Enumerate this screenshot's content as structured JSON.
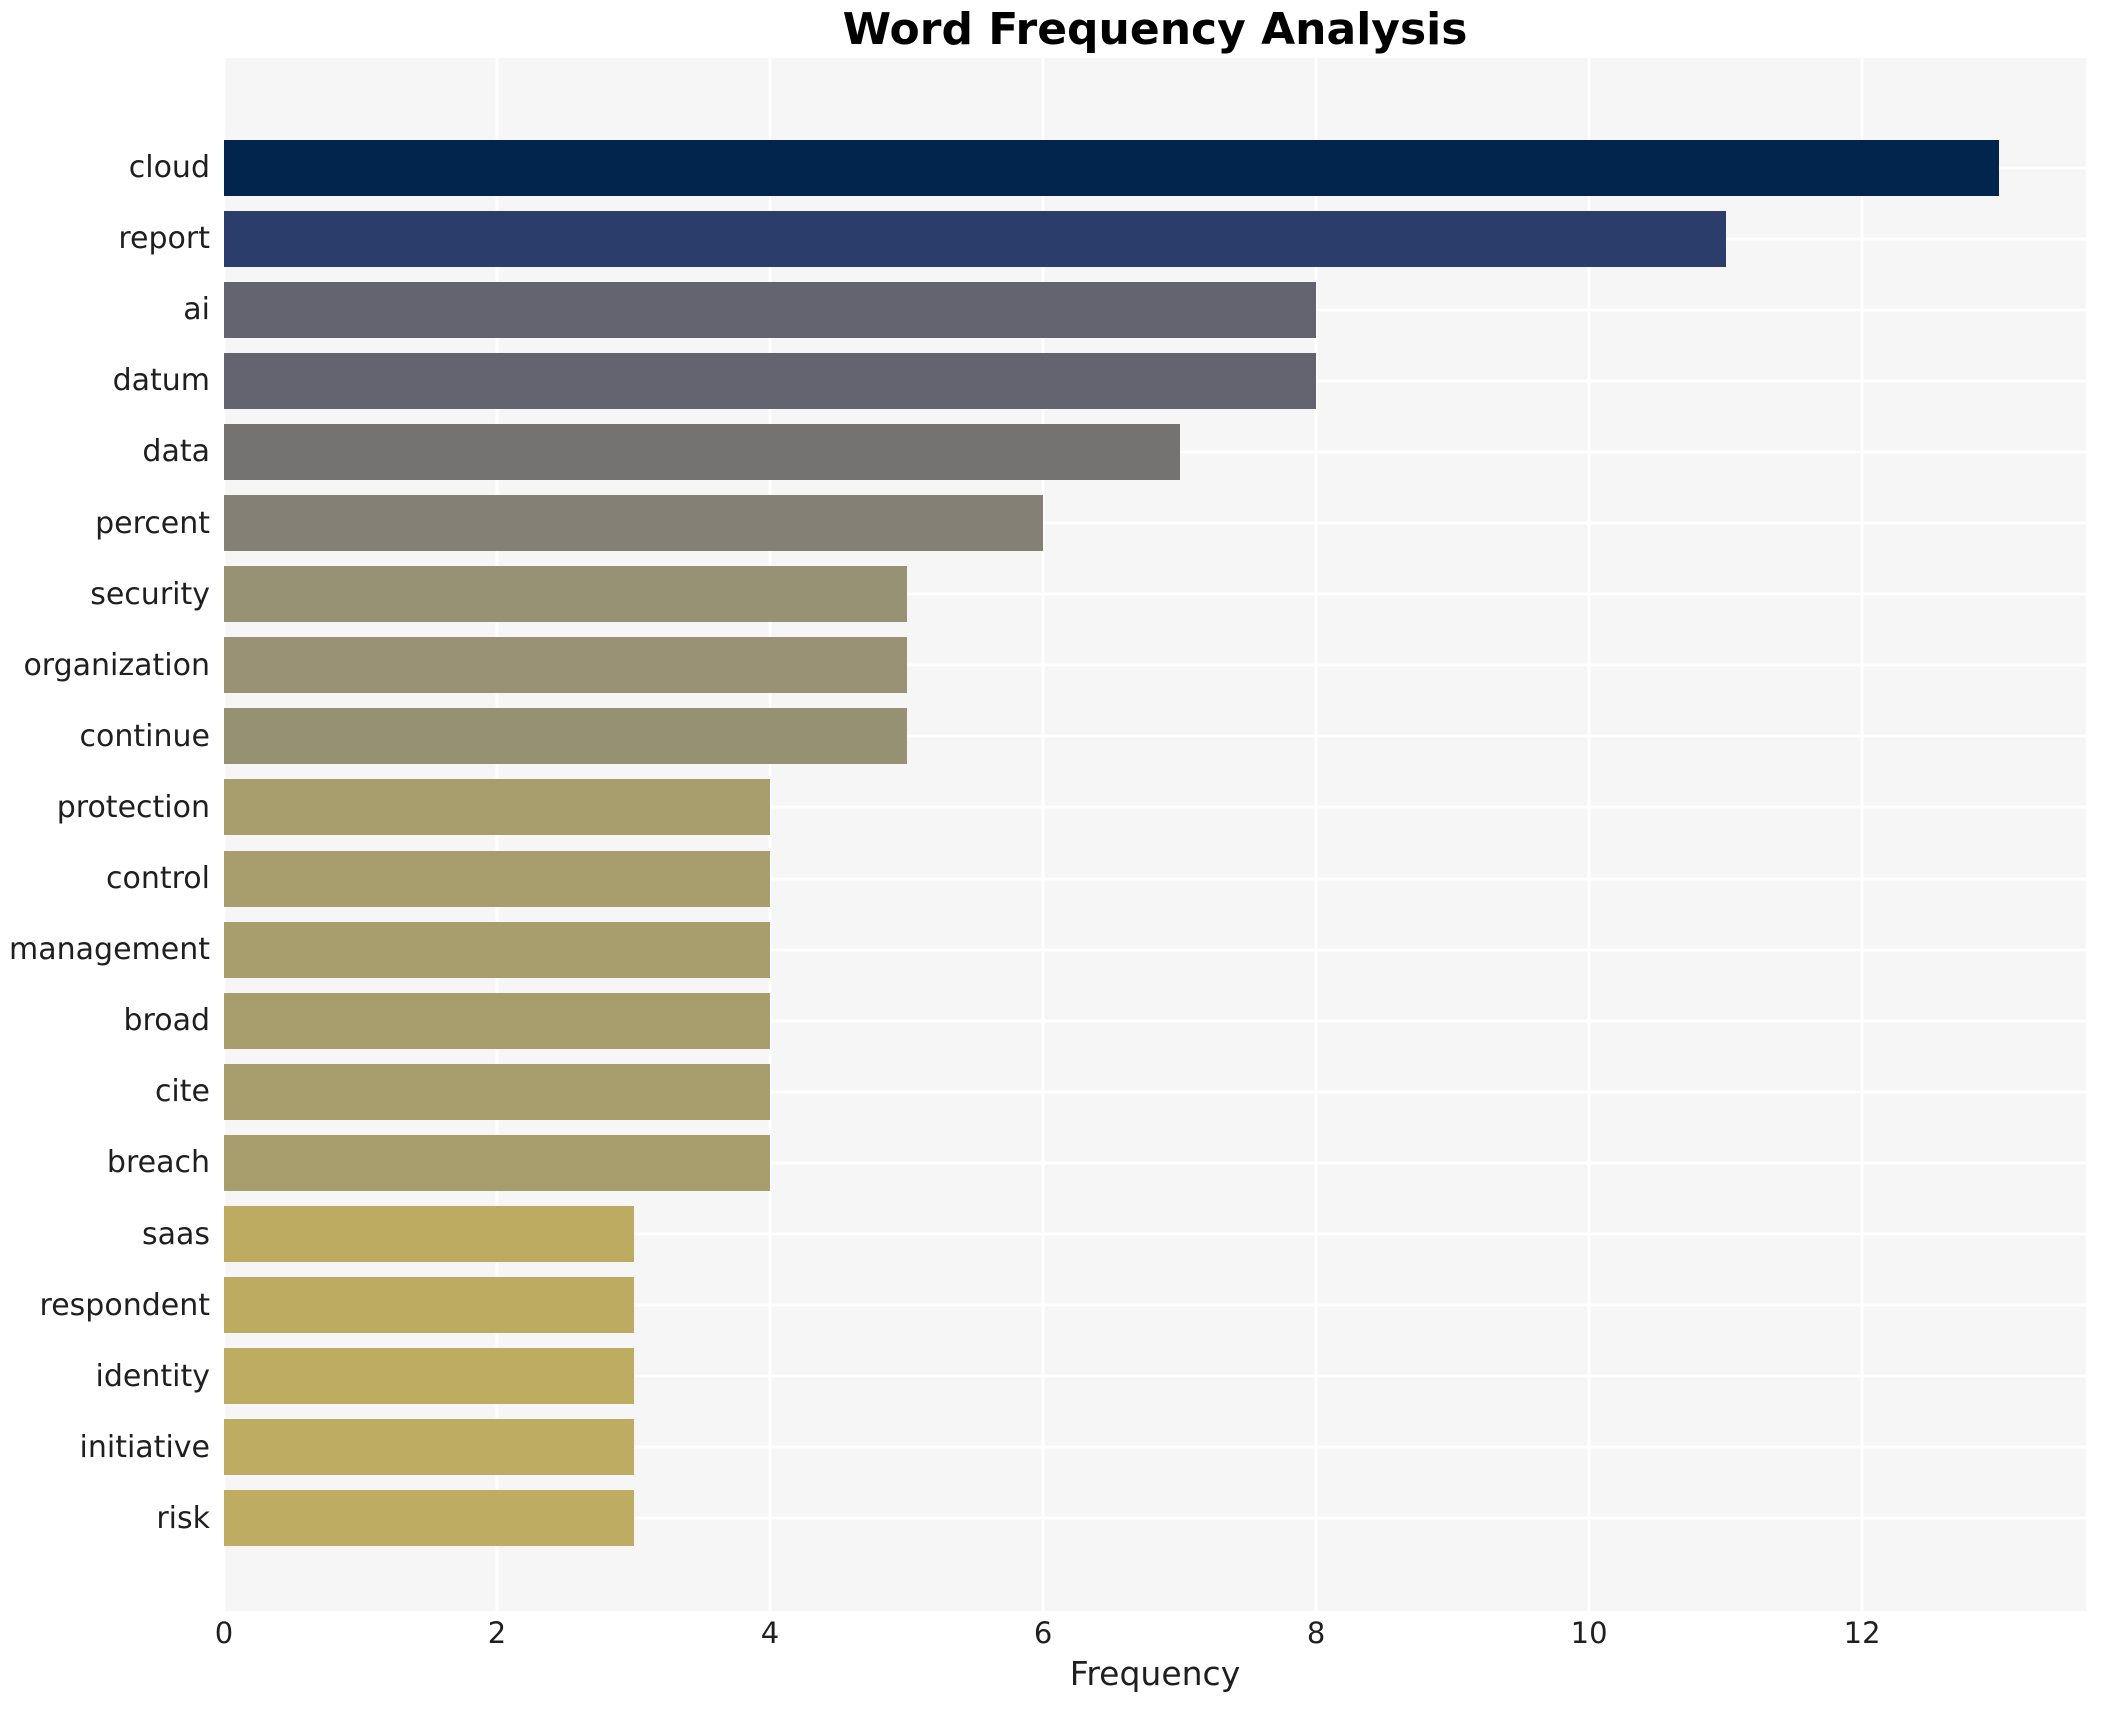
{
  "title": "Word Frequency Analysis",
  "chart_data": {
    "type": "bar",
    "orientation": "horizontal",
    "title": "Word Frequency Analysis",
    "xlabel": "Frequency",
    "ylabel": "",
    "categories": [
      "cloud",
      "report",
      "ai",
      "datum",
      "data",
      "percent",
      "security",
      "organization",
      "continue",
      "protection",
      "control",
      "management",
      "broad",
      "cite",
      "breach",
      "saas",
      "respondent",
      "identity",
      "initiative",
      "risk"
    ],
    "values": [
      13,
      11,
      8,
      8,
      7,
      6,
      5,
      5,
      5,
      4,
      4,
      4,
      4,
      4,
      4,
      3,
      3,
      3,
      3,
      3
    ],
    "bar_colors": [
      "#02254e",
      "#2b3e6b",
      "#63646f",
      "#636470",
      "#747372",
      "#858076",
      "#989274",
      "#999274",
      "#979173",
      "#a79d6d",
      "#a89d6c",
      "#a89d6c",
      "#a89d6c",
      "#a89d6c",
      "#a89d6c",
      "#bcab61",
      "#bcab61",
      "#bdac62",
      "#bdac62",
      "#bdac62"
    ],
    "xticks": [
      0,
      2,
      4,
      6,
      8,
      10,
      12
    ],
    "xtick_labels": [
      "0",
      "2",
      "4",
      "6",
      "8",
      "10",
      "12"
    ],
    "xlim": [
      0,
      13.64
    ],
    "grid": true,
    "legend": false,
    "plot_bg": "#f6f6f7",
    "grid_color": "#ffffff",
    "text_color": "#1f1f1f",
    "title_color": "#000000"
  }
}
